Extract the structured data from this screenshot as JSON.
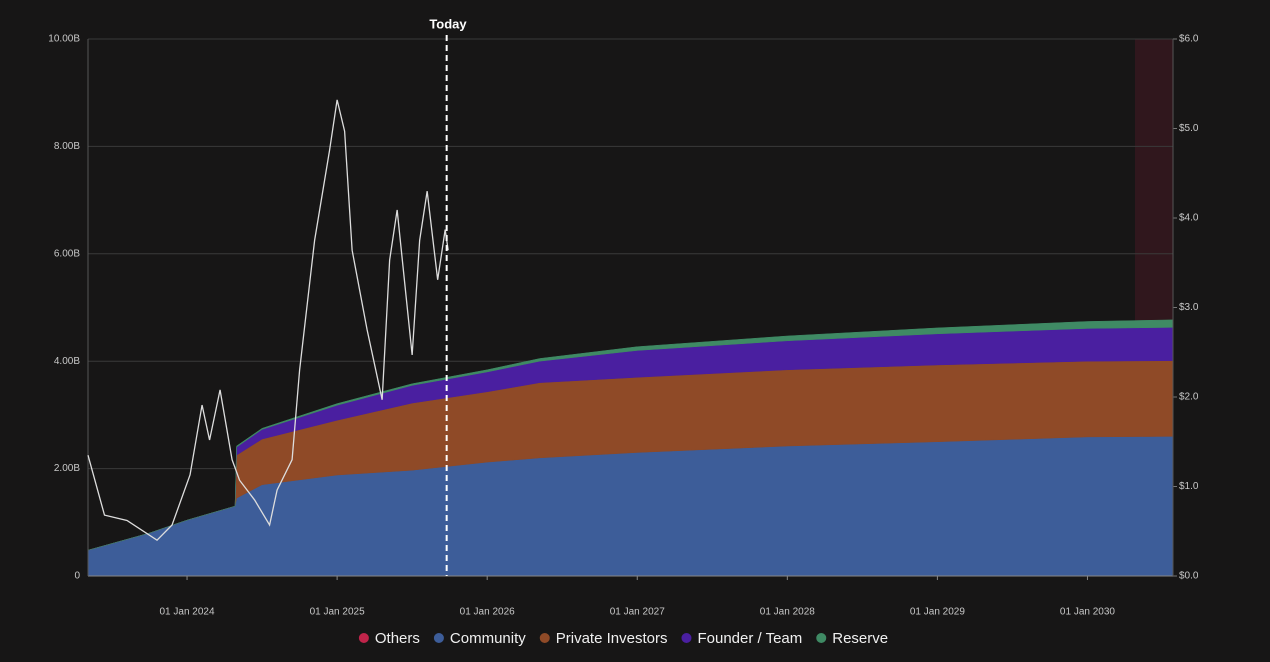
{
  "chart_data": {
    "type": "stacked-area",
    "annotation": "Today",
    "today_x": 2025.73,
    "x": [
      2023.34,
      2023.75,
      2024.0,
      2024.32,
      2024.33,
      2024.5,
      2025.0,
      2025.5,
      2026.0,
      2026.35,
      2027.0,
      2028.0,
      2029.0,
      2030.0,
      2030.57
    ],
    "series": [
      {
        "name": "Others",
        "color": "#c0244a",
        "values": [
          0,
          0,
          0,
          0,
          0,
          0,
          0,
          0,
          0,
          0,
          0,
          0,
          0,
          0,
          0
        ]
      },
      {
        "name": "Community",
        "color": "#3d5d99",
        "values": [
          0.48,
          0.8,
          1.04,
          1.3,
          1.45,
          1.7,
          1.88,
          1.97,
          2.12,
          2.2,
          2.3,
          2.42,
          2.5,
          2.59,
          2.6
        ]
      },
      {
        "name": "Private Investors",
        "color": "#8f4a27",
        "values": [
          0,
          0,
          0,
          0,
          0.8,
          0.85,
          1.02,
          1.25,
          1.31,
          1.4,
          1.4,
          1.42,
          1.43,
          1.41,
          1.41
        ]
      },
      {
        "name": "Founder / Team",
        "color": "#4a1fa0",
        "values": [
          0,
          0,
          0,
          0,
          0.15,
          0.18,
          0.28,
          0.33,
          0.37,
          0.4,
          0.5,
          0.54,
          0.58,
          0.61,
          0.62
        ]
      },
      {
        "name": "Reserve",
        "color": "#3f8a64",
        "values": [
          0,
          0,
          0,
          0,
          0.02,
          0.02,
          0.03,
          0.03,
          0.04,
          0.05,
          0.07,
          0.09,
          0.11,
          0.13,
          0.14
        ]
      }
    ],
    "price_line": {
      "axis": "y2",
      "color": "#dddddd",
      "x": [
        2023.34,
        2023.45,
        2023.6,
        2023.8,
        2023.9,
        2024.02,
        2024.1,
        2024.15,
        2024.22,
        2024.3,
        2024.35,
        2024.45,
        2024.55,
        2024.6,
        2024.7,
        2024.75,
        2024.85,
        2024.95,
        2025.0,
        2025.05,
        2025.1,
        2025.2,
        2025.3,
        2025.35,
        2025.4,
        2025.5,
        2025.55,
        2025.6,
        2025.67,
        2025.72,
        2025.74
      ],
      "values": [
        1.35,
        0.68,
        0.62,
        0.4,
        0.57,
        1.13,
        1.91,
        1.52,
        2.08,
        1.3,
        1.07,
        0.85,
        0.57,
        0.96,
        1.3,
        2.3,
        3.75,
        4.76,
        5.32,
        4.97,
        3.64,
        2.75,
        1.97,
        3.53,
        4.09,
        2.47,
        3.75,
        4.3,
        3.31,
        3.87,
        3.64
      ]
    },
    "xlim": [
      2023.34,
      2030.57
    ],
    "xticks": [
      {
        "value": 2024,
        "label": "01 Jan 2024"
      },
      {
        "value": 2025,
        "label": "01 Jan 2025"
      },
      {
        "value": 2026,
        "label": "01 Jan 2026"
      },
      {
        "value": 2027,
        "label": "01 Jan 2027"
      },
      {
        "value": 2028,
        "label": "01 Jan 2028"
      },
      {
        "value": 2029,
        "label": "01 Jan 2029"
      },
      {
        "value": 2030,
        "label": "01 Jan 2030"
      }
    ],
    "ylim": [
      0,
      10
    ],
    "yticks": [
      0,
      {
        "value": 2,
        "label": "2.00B"
      },
      {
        "value": 4,
        "label": "4.00B"
      },
      {
        "value": 6,
        "label": "6.00B"
      },
      {
        "value": 8,
        "label": "8.00B"
      },
      {
        "value": 10,
        "label": "10.00B"
      }
    ],
    "y2lim": [
      0,
      6
    ],
    "y2ticks": [
      {
        "value": 0,
        "label": "$0.0"
      },
      {
        "value": 1,
        "label": "$1.0"
      },
      {
        "value": 2,
        "label": "$2.0"
      },
      {
        "value": 3,
        "label": "$3.0"
      },
      {
        "value": 4,
        "label": "$4.0"
      },
      {
        "value": 5,
        "label": "$5.0"
      },
      {
        "value": 6,
        "label": "$6.0"
      }
    ],
    "grid": true,
    "legend": "bottom"
  }
}
